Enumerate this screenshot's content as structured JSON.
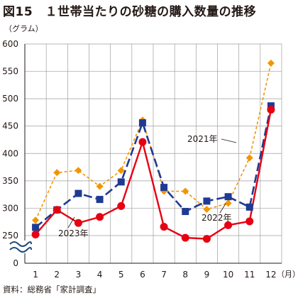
{
  "title": "図15　１世帯当たりの砂糖の購入数量の推移",
  "source": "資料：総務省「家計調査」",
  "chart_data": {
    "type": "line",
    "ylabel": "（グラム）",
    "xlabel": "（月）",
    "categories": [
      "1",
      "2",
      "3",
      "4",
      "5",
      "6",
      "7",
      "8",
      "9",
      "10",
      "11",
      "12"
    ],
    "y_ticks": [
      "0",
      "250",
      "300",
      "350",
      "400",
      "450",
      "500",
      "550",
      "600"
    ],
    "ylim": [
      250,
      600
    ],
    "axis_break": true,
    "grid": true,
    "series": [
      {
        "name": "2021年",
        "color": "#1f3a93",
        "style": "dashed",
        "marker": "square",
        "values": [
          265,
          297,
          327,
          316,
          348,
          456,
          338,
          294,
          313,
          321,
          302,
          487
        ]
      },
      {
        "name": "2022年",
        "color": "#f29600",
        "style": "dotted",
        "marker": "diamond",
        "values": [
          278,
          365,
          369,
          340,
          369,
          461,
          331,
          331,
          298,
          309,
          392,
          565
        ]
      },
      {
        "name": "2023年",
        "color": "#e60012",
        "style": "solid",
        "marker": "circle",
        "values": [
          252,
          297,
          273,
          284,
          304,
          421,
          266,
          246,
          244,
          269,
          276,
          480
        ]
      }
    ]
  }
}
